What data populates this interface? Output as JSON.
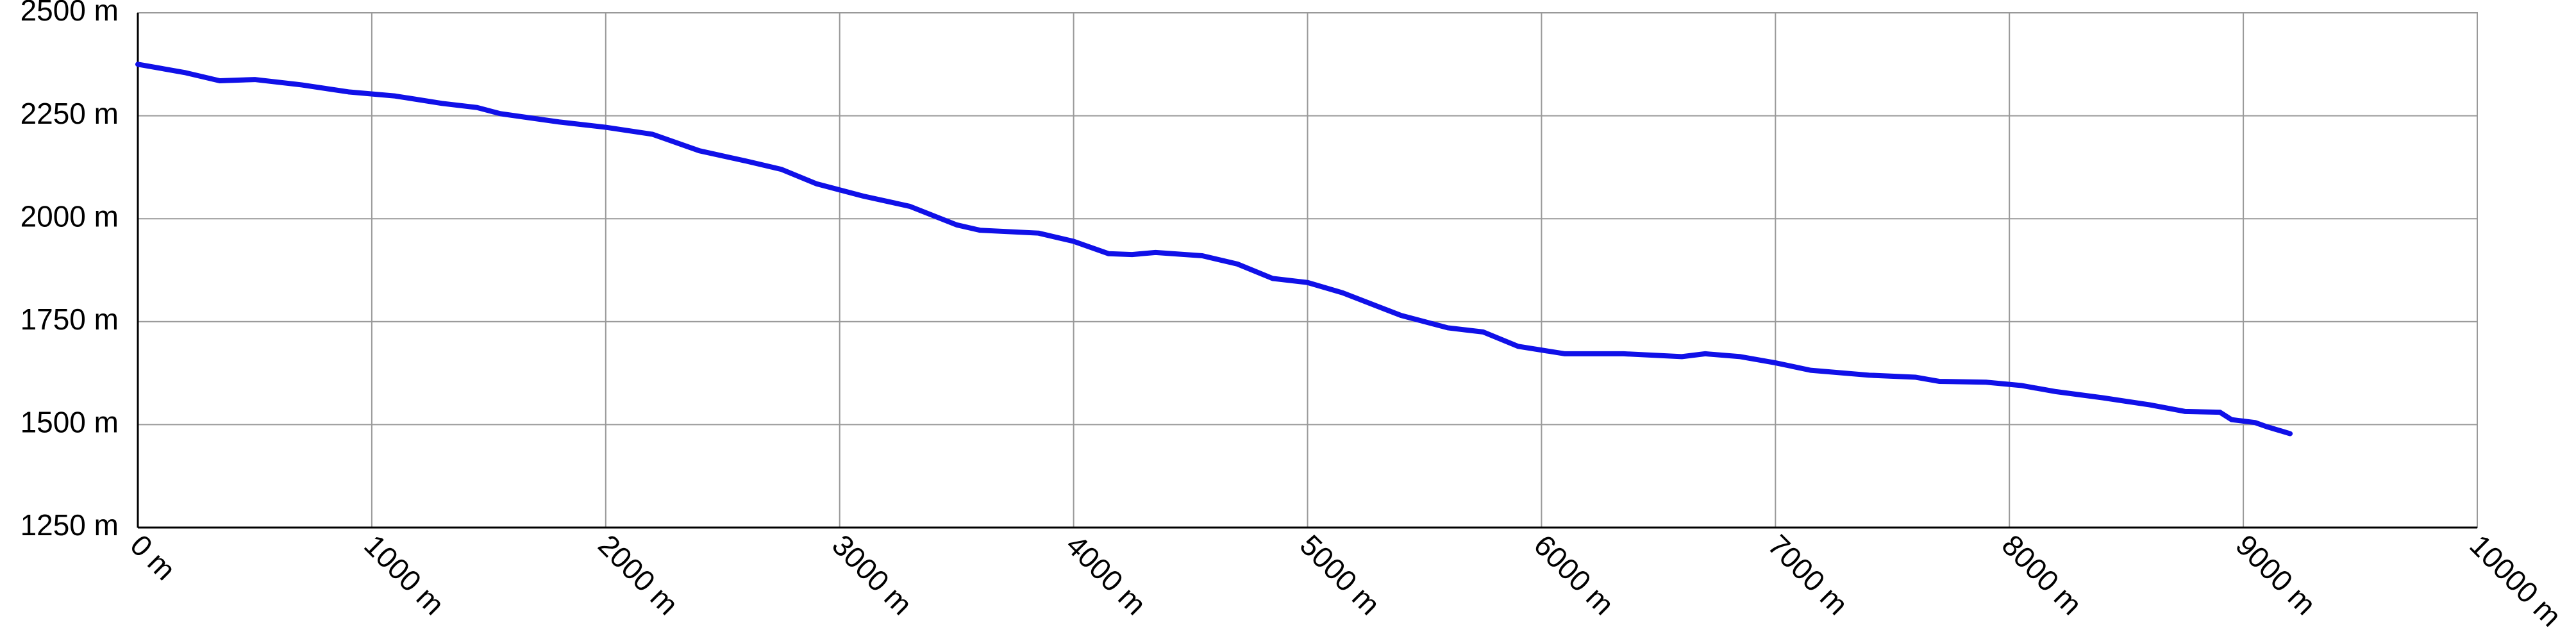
{
  "chart_data": {
    "type": "line",
    "x": [
      0,
      200,
      350,
      500,
      700,
      900,
      1100,
      1300,
      1450,
      1550,
      1800,
      2000,
      2200,
      2400,
      2600,
      2750,
      2900,
      3100,
      3300,
      3500,
      3600,
      3850,
      4000,
      4150,
      4250,
      4350,
      4550,
      4700,
      4850,
      5000,
      5150,
      5400,
      5600,
      5750,
      5900,
      6100,
      6350,
      6600,
      6700,
      6850,
      7000,
      7150,
      7400,
      7600,
      7700,
      7900,
      8050,
      8200,
      8400,
      8600,
      8750,
      8900,
      8950,
      9050,
      9100,
      9200
    ],
    "values": [
      2375,
      2355,
      2335,
      2338,
      2325,
      2308,
      2298,
      2280,
      2270,
      2255,
      2235,
      2222,
      2205,
      2165,
      2140,
      2120,
      2085,
      2055,
      2030,
      1985,
      1972,
      1965,
      1945,
      1915,
      1913,
      1918,
      1910,
      1890,
      1855,
      1845,
      1820,
      1765,
      1735,
      1725,
      1690,
      1672,
      1672,
      1665,
      1672,
      1665,
      1650,
      1632,
      1620,
      1615,
      1605,
      1603,
      1595,
      1580,
      1565,
      1548,
      1532,
      1530,
      1512,
      1505,
      1495,
      1478
    ],
    "color": "#1010e8",
    "xlim": [
      0,
      10000
    ],
    "ylim": [
      1250,
      2500
    ],
    "xticks": [
      {
        "value": 0,
        "label": "0 m"
      },
      {
        "value": 1000,
        "label": "1000 m"
      },
      {
        "value": 2000,
        "label": "2000 m"
      },
      {
        "value": 3000,
        "label": "3000 m"
      },
      {
        "value": 4000,
        "label": "4000 m"
      },
      {
        "value": 5000,
        "label": "5000 m"
      },
      {
        "value": 6000,
        "label": "6000 m"
      },
      {
        "value": 7000,
        "label": "7000 m"
      },
      {
        "value": 8000,
        "label": "8000 m"
      },
      {
        "value": 9000,
        "label": "9000 m"
      },
      {
        "value": 10000,
        "label": "10000 m"
      }
    ],
    "yticks": [
      {
        "value": 1250,
        "label": "1250 m"
      },
      {
        "value": 1500,
        "label": "1500 m"
      },
      {
        "value": 1750,
        "label": "1750 m"
      },
      {
        "value": 2000,
        "label": "2000 m"
      },
      {
        "value": 2250,
        "label": "2250 m"
      },
      {
        "value": 2500,
        "label": "2500 m"
      }
    ],
    "grid": true
  }
}
